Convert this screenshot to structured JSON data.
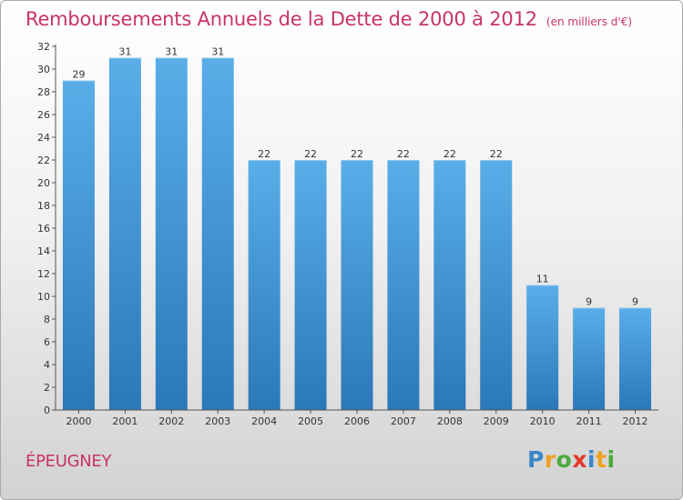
{
  "title": "Remboursements Annuels de la Dette de 2000 à 2012",
  "unit_note": "(en milliers d'€)",
  "commune": "ÉPEUGNEY",
  "logo": {
    "text": "Proxiti",
    "letters": [
      {
        "ch": "P",
        "color": "#3a86c8"
      },
      {
        "ch": "r",
        "color": "#f0a020"
      },
      {
        "ch": "o",
        "color": "#4aaa3a"
      },
      {
        "ch": "x",
        "color": "#e5382c"
      },
      {
        "ch": "i",
        "color": "#3a86c8"
      },
      {
        "ch": "t",
        "color": "#f0a020"
      },
      {
        "ch": "i",
        "color": "#4aaa3a"
      }
    ]
  },
  "colors": {
    "title": "#c8336a",
    "bar_top": "#5aaee8",
    "bar_bottom": "#2a78b8",
    "axis": "#555555",
    "grid": "#dddddd",
    "label": "#333333"
  },
  "chart_data": {
    "type": "bar",
    "title": "Remboursements Annuels de la Dette de 2000 à 2012",
    "categories": [
      "2000",
      "2001",
      "2002",
      "2003",
      "2004",
      "2005",
      "2006",
      "2007",
      "2008",
      "2009",
      "2010",
      "2011",
      "2012"
    ],
    "values": [
      29,
      31,
      31,
      31,
      22,
      22,
      22,
      22,
      22,
      22,
      11,
      9,
      9
    ],
    "data_labels": [
      "29",
      "31",
      "31",
      "31",
      "22",
      "22",
      "22",
      "22",
      "22",
      "22",
      "11",
      "9",
      "9"
    ],
    "ylim": [
      0,
      32
    ],
    "yticks": [
      0,
      2,
      4,
      6,
      8,
      10,
      12,
      14,
      16,
      18,
      20,
      22,
      24,
      26,
      28,
      30,
      32
    ],
    "xlabel": "",
    "ylabel": "",
    "grid": false
  }
}
